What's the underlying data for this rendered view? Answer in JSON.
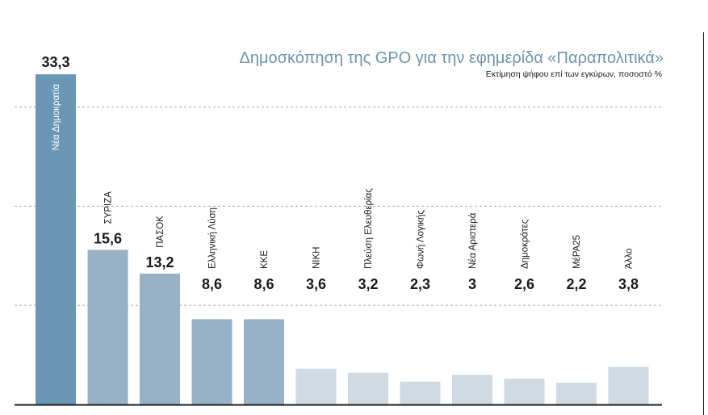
{
  "chart_data": {
    "type": "bar",
    "title": "Δημοσκόπηση της GPO για την εφημερίδα «Παραπολιτικά»",
    "subtitle": "Εκτίμηση ψήφου επί των εγκύρων, ποσοστό %",
    "categories": [
      "Νέα Δημοκρατία",
      "ΣΥΡΙΖΑ",
      "ΠΑΣΟΚ",
      "Ελληνική Λύση",
      "ΚΚΕ",
      "ΝΙΚΗ",
      "Πλεύση Ελευθερίας",
      "Φωνή Λογικής",
      "Νέα Αριστερά",
      "Δημοκράτες",
      "ΜέΡΑ25",
      "Άλλο"
    ],
    "values": [
      33.3,
      15.6,
      13.2,
      8.6,
      8.6,
      3.6,
      3.2,
      2.3,
      3,
      2.6,
      2.2,
      3.8
    ],
    "value_labels": [
      "33,3",
      "15,6",
      "13,2",
      "8,6",
      "8,6",
      "3,6",
      "3,2",
      "2,3",
      "3",
      "2,6",
      "2,2",
      "3,8"
    ],
    "ylim": [
      0,
      33.3
    ],
    "grid": true,
    "colors": {
      "leader": "#6b97b6",
      "major": "#97b2c6",
      "minor": "#cfdae3",
      "title": "#6f93ac",
      "text": "#1a1a1a",
      "grid": "#aaaaaa"
    }
  }
}
